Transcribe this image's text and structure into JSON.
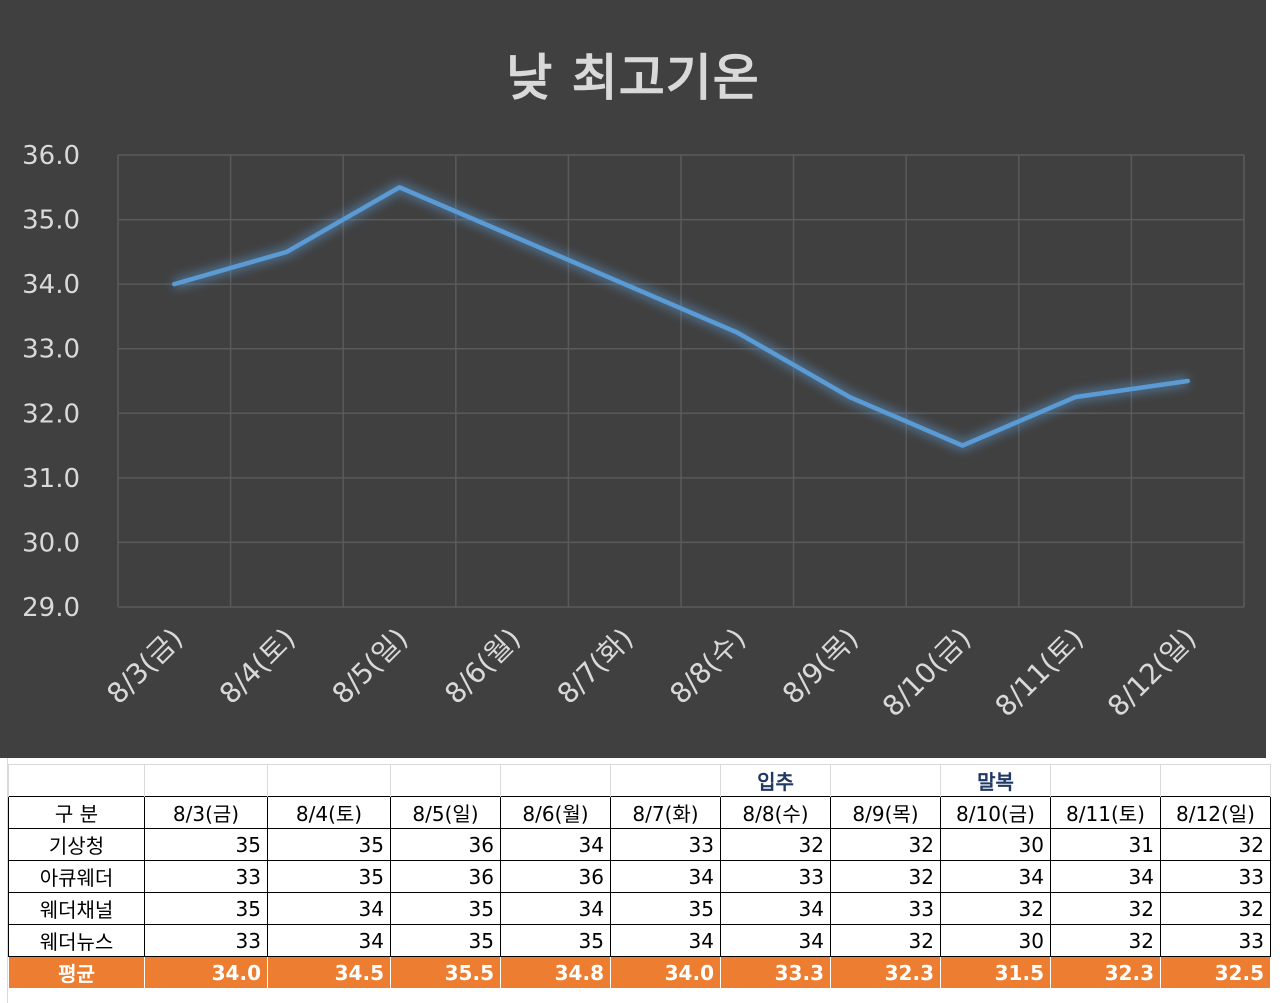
{
  "chart_data": {
    "type": "line",
    "title": "낮 최고기온",
    "categories": [
      "8/3(금)",
      "8/4(토)",
      "8/5(일)",
      "8/6(월)",
      "8/7(화)",
      "8/8(수)",
      "8/9(목)",
      "8/10(금)",
      "8/11(토)",
      "8/12(일)"
    ],
    "series": [
      {
        "values": [
          34.0,
          34.5,
          35.5,
          34.75,
          34.0,
          33.25,
          32.25,
          31.5,
          32.25,
          32.5
        ],
        "color": "#5b9bd5"
      }
    ],
    "ylim": [
      29.0,
      36.0
    ],
    "yticks": [
      "29.0",
      "30.0",
      "31.0",
      "32.0",
      "33.0",
      "34.0",
      "35.0",
      "36.0"
    ],
    "grid": true,
    "legend": "none",
    "xlabel": "",
    "ylabel": ""
  },
  "table": {
    "events": [
      "",
      "",
      "",
      "",
      "",
      "",
      "입추",
      "",
      "말복",
      "",
      ""
    ],
    "header": [
      "구 분",
      "8/3(금)",
      "8/4(토)",
      "8/5(일)",
      "8/6(월)",
      "8/7(화)",
      "8/8(수)",
      "8/9(목)",
      "8/10(금)",
      "8/11(토)",
      "8/12(일)"
    ],
    "rows": [
      {
        "label": "기상청",
        "values": [
          "35",
          "35",
          "36",
          "34",
          "33",
          "32",
          "32",
          "30",
          "31",
          "32"
        ]
      },
      {
        "label": "아큐웨더",
        "values": [
          "33",
          "35",
          "36",
          "36",
          "34",
          "33",
          "32",
          "34",
          "34",
          "33"
        ]
      },
      {
        "label": "웨더채널",
        "values": [
          "35",
          "34",
          "35",
          "34",
          "35",
          "34",
          "33",
          "32",
          "32",
          "32"
        ]
      },
      {
        "label": "웨더뉴스",
        "values": [
          "33",
          "34",
          "35",
          "35",
          "34",
          "34",
          "32",
          "30",
          "32",
          "33"
        ]
      }
    ],
    "average": {
      "label": "평균",
      "values": [
        "34.0",
        "34.5",
        "35.5",
        "34.8",
        "34.0",
        "33.3",
        "32.3",
        "31.5",
        "32.3",
        "32.5"
      ]
    }
  },
  "colors": {
    "chart_background": "#404040",
    "line": "#5b9bd5",
    "average_row": "#ed7d31",
    "event_text": "#1f3864"
  }
}
